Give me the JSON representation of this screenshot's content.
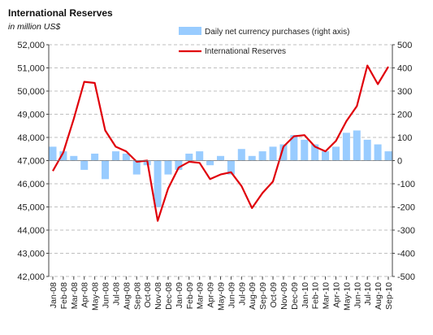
{
  "chart_data": {
    "type": "line+bar",
    "title": "International Reserves",
    "subtitle": "in million US$",
    "left_axis": {
      "ylim": [
        42000,
        52000
      ],
      "ticks": [
        "42,000",
        "43,000",
        "44,000",
        "45,000",
        "46,000",
        "47,000",
        "48,000",
        "49,000",
        "50,000",
        "51,000",
        "52,000"
      ]
    },
    "right_axis": {
      "ylim": [
        -500,
        500
      ],
      "ticks": [
        "-500",
        "-400",
        "-300",
        "-200",
        "-100",
        "0",
        "100",
        "200",
        "300",
        "400",
        "500"
      ]
    },
    "x_labels": [
      "Jan-08",
      "Feb-08",
      "Mar-08",
      "Apr-08",
      "May-08",
      "Jun-08",
      "Jul-08",
      "Aug-08",
      "Sep-08",
      "Oct-08",
      "Nov-08",
      "Dec-08",
      "Jan-09",
      "Feb-09",
      "Mar-09",
      "Apr-09",
      "May-09",
      "Jun-09",
      "Jul-09",
      "Aug-09",
      "Sep-09",
      "Oct-09",
      "Nov-09",
      "Dec-09",
      "Jan-10",
      "Feb-10",
      "Mar-10",
      "Apr-10",
      "May-10",
      "Jun-10",
      "Jul-10",
      "Aug-10",
      "Sep-10"
    ],
    "gridlines": "horizontal-dashed",
    "legend": {
      "position": "top-center",
      "items": [
        {
          "label": "Daily net currency purchases (right axis)",
          "color": "#99ccff",
          "kind": "bar"
        },
        {
          "label": "International Reserves",
          "color": "#e0000a",
          "kind": "line"
        }
      ]
    },
    "series": [
      {
        "name": "International Reserves",
        "axis": "left",
        "color": "#e0000a",
        "values": [
          46550,
          47350,
          48800,
          50400,
          50350,
          48300,
          47600,
          47400,
          46950,
          47000,
          44400,
          45800,
          46700,
          46950,
          46900,
          46200,
          46400,
          46500,
          45900,
          44950,
          45600,
          46100,
          47600,
          48050,
          48100,
          47600,
          47400,
          47850,
          48700,
          49350,
          51100,
          50300,
          51050
        ]
      },
      {
        "name": "Daily net currency purchases (right axis)",
        "axis": "right",
        "color": "#99ccff",
        "values": [
          60,
          40,
          20,
          -40,
          30,
          -80,
          40,
          30,
          -60,
          -20,
          -200,
          -60,
          -40,
          30,
          40,
          -20,
          20,
          -60,
          50,
          20,
          40,
          60,
          70,
          110,
          90,
          70,
          40,
          60,
          120,
          130,
          90,
          70,
          40
        ]
      }
    ]
  }
}
